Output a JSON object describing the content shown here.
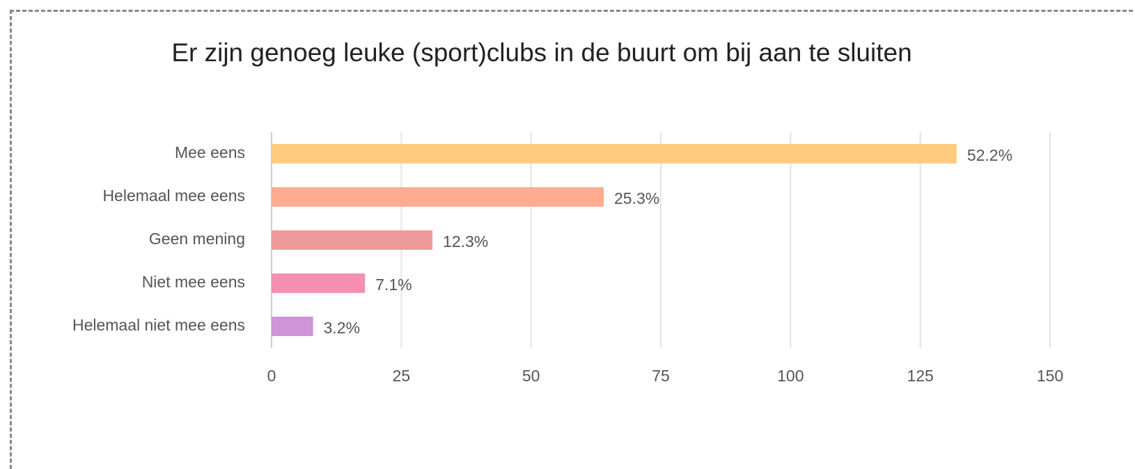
{
  "chart_data": {
    "type": "bar",
    "orientation": "horizontal",
    "title": "Er zijn genoeg leuke (sport)clubs in de buurt om bij aan te sluiten",
    "categories": [
      "Mee eens",
      "Helemaal mee eens",
      "Geen mening",
      "Niet mee eens",
      "Helemaal niet mee eens"
    ],
    "values": [
      132,
      64,
      31,
      18,
      8
    ],
    "value_labels": [
      "52.2%",
      "25.3%",
      "12.3%",
      "7.1%",
      "3.2%"
    ],
    "colors": [
      "#ffcc80",
      "#ffab91",
      "#ef9a9a",
      "#f48fb1",
      "#ce93d8"
    ],
    "xlim": [
      0,
      150
    ],
    "xticks": [
      0,
      25,
      50,
      75,
      100,
      125,
      150
    ],
    "grid": true
  }
}
